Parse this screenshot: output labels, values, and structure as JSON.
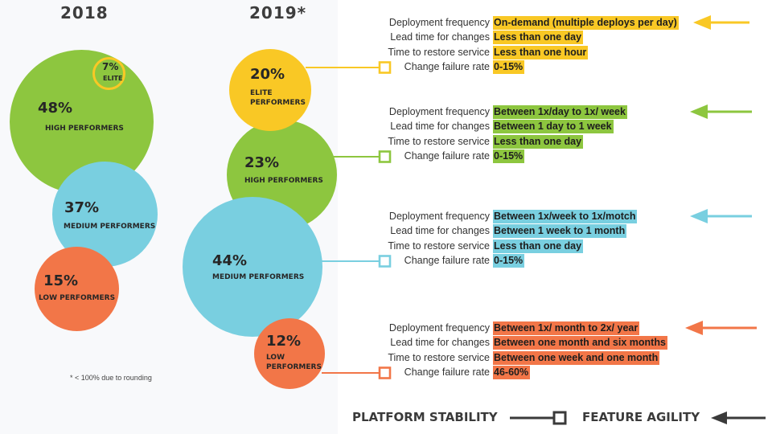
{
  "colors": {
    "elite": "#f9c825",
    "high": "#8dc63f",
    "medium": "#79cfe0",
    "low": "#f27648",
    "dark": "#3a3a3a"
  },
  "years": {
    "y2018": "2018",
    "y2019": "2019*"
  },
  "bubbles_2018": {
    "elite": {
      "pct": "7%",
      "label": "ELITE"
    },
    "high": {
      "pct": "48%",
      "label": "HIGH PERFORMERS"
    },
    "medium": {
      "pct": "37%",
      "label": "MEDIUM PERFORMERS"
    },
    "low": {
      "pct": "15%",
      "label": "LOW PERFORMERS"
    }
  },
  "bubbles_2019": {
    "elite": {
      "pct": "20%",
      "label1": "ELITE",
      "label2": "PERFORMERS"
    },
    "high": {
      "pct": "23%",
      "label": "HIGH PERFORMERS"
    },
    "medium": {
      "pct": "44%",
      "label": "MEDIUM PERFORMERS"
    },
    "low": {
      "pct": "12%",
      "label1": "LOW",
      "label2": "PERFORMERS"
    }
  },
  "footnote": "* < 100% due to rounding",
  "metric_labels": {
    "deploy": "Deployment frequency",
    "lead": "Lead time for changes",
    "restore": "Time to restore service",
    "failure": "Change failure rate"
  },
  "groups": {
    "elite": {
      "deploy": "On-demand (multiple deploys per day)",
      "lead": "Less than one day",
      "restore": "Less than one hour",
      "failure": "0-15%"
    },
    "high": {
      "deploy": "Between 1x/day to 1x/ week",
      "lead": "Between 1 day to 1 week",
      "restore": "Less than one day",
      "failure": "0-15%"
    },
    "medium": {
      "deploy": "Between 1x/week to 1x/motch",
      "lead": "Between 1 week to 1 month",
      "restore": "Less than one day",
      "failure": "0-15%"
    },
    "low": {
      "deploy": "Between 1x/ month to 2x/ year",
      "lead": "Between one month and six months",
      "restore": "Between one week and one month",
      "failure": "46-60%"
    }
  },
  "legend": {
    "stability": "PLATFORM STABILITY",
    "agility": "FEATURE AGILITY"
  }
}
